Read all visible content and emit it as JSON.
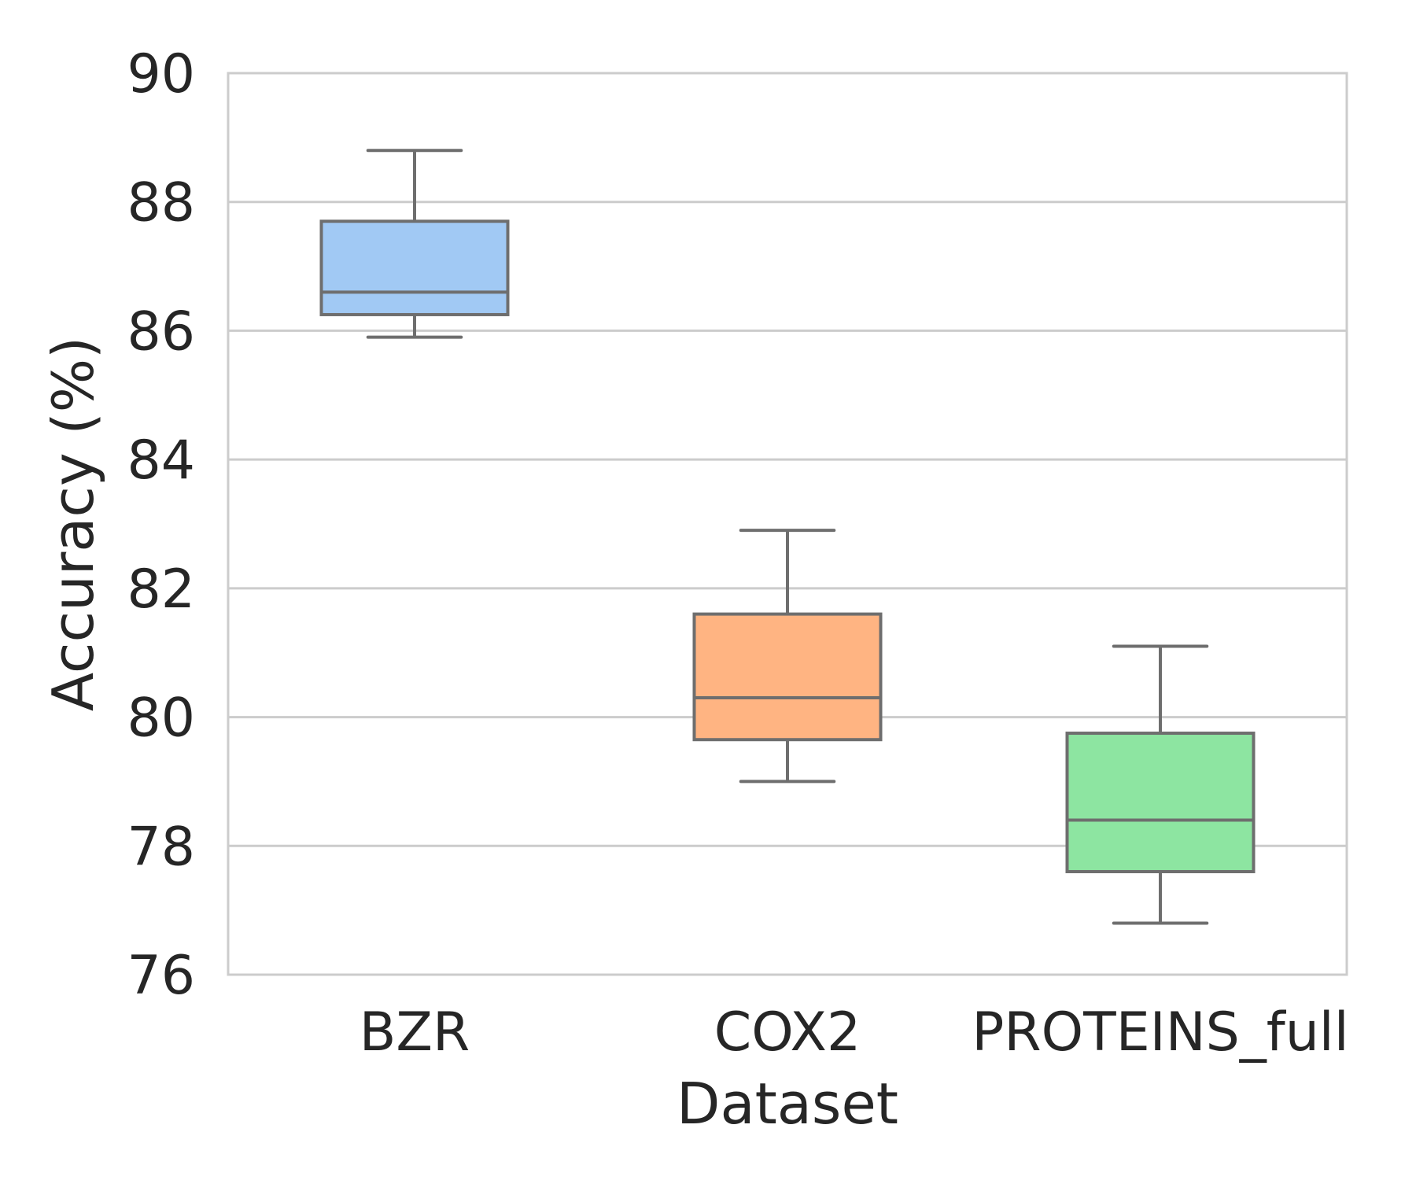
{
  "chart_data": {
    "type": "box",
    "title": "",
    "xlabel": "Dataset",
    "ylabel": "Accuracy (%)",
    "ylim": [
      76,
      90
    ],
    "yticks": [
      76,
      78,
      80,
      82,
      84,
      86,
      88,
      90
    ],
    "grid": true,
    "categories": [
      "BZR",
      "COX2",
      "PROTEINS_full"
    ],
    "boxes": [
      {
        "name": "BZR",
        "whisker_low": 85.9,
        "q1": 86.25,
        "median": 86.6,
        "q3": 87.7,
        "whisker_high": 88.8,
        "color": "#a1c9f4"
      },
      {
        "name": "COX2",
        "whisker_low": 79.0,
        "q1": 79.65,
        "median": 80.3,
        "q3": 81.6,
        "whisker_high": 82.9,
        "color": "#ffb482"
      },
      {
        "name": "PROTEINS_full",
        "whisker_low": 76.8,
        "q1": 77.6,
        "median": 78.4,
        "q3": 79.75,
        "whisker_high": 81.1,
        "color": "#8de5a1"
      }
    ]
  }
}
